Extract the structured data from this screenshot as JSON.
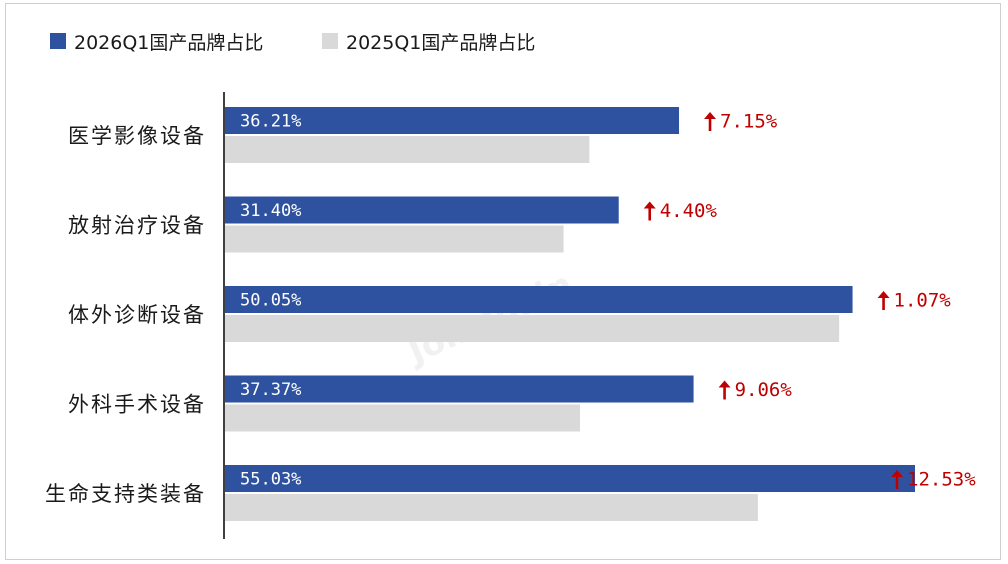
{
  "chart_data": {
    "type": "bar",
    "orientation": "horizontal",
    "categories": [
      "医学影像设备",
      "放射治疗设备",
      "体外诊断设备",
      "外科手术设备",
      "生命支持类装备"
    ],
    "series": [
      {
        "name": "2026Q1国产品牌占比",
        "values": [
          36.21,
          31.4,
          50.05,
          37.37,
          55.03
        ],
        "color": "#2f52a0",
        "labels": [
          "36.21%",
          "31.40%",
          "50.05%",
          "37.37%",
          "55.03%"
        ]
      },
      {
        "name": "2025Q1国产品牌占比",
        "values": [
          29.06,
          27.0,
          48.98,
          28.31,
          42.5
        ],
        "color": "#d9d9d9"
      }
    ],
    "annotations": {
      "arrow": "↑",
      "color": "#c00000",
      "deltas": [
        "7.15%",
        "4.40%",
        "1.07%",
        "9.06%",
        "12.53%"
      ]
    },
    "xlim": [
      0,
      55.03
    ],
    "grid": false,
    "legend_position": "top-left",
    "watermark": "Joinchain"
  }
}
